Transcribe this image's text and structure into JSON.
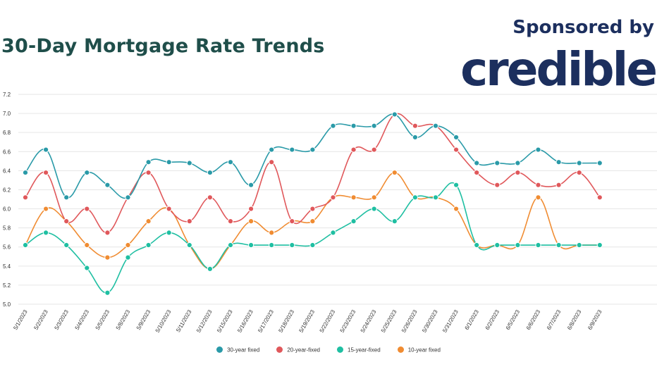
{
  "header": {
    "title": "30-Day Mortgage Rate Trends",
    "sponsor_text": "Sponsored by",
    "brand_name": "credible"
  },
  "colors": {
    "30-year fixed": "#2a9aa8",
    "20-year-fixed": "#e0585b",
    "15-year-fixed": "#1fbfa2",
    "10-year fixed": "#f08c32",
    "title": "#1f4e4a",
    "brand": "#1c2f5e"
  },
  "chart_data": {
    "type": "line",
    "x": [
      "5/1/2023",
      "5/2/2023",
      "5/3/2023",
      "5/4/2023",
      "5/5/2023",
      "5/8/2023",
      "5/9/2023",
      "5/10/2023",
      "5/11/2023",
      "5/12/2023",
      "5/15/2023",
      "5/16/2023",
      "5/17/2023",
      "5/18/2023",
      "5/19/2023",
      "5/22/2023",
      "5/23/2023",
      "5/24/2023",
      "5/25/2023",
      "5/26/2023",
      "5/30/2023",
      "5/31/2023",
      "6/1/2023",
      "6/2/2023",
      "6/5/2023",
      "6/6/2023",
      "6/7/2023",
      "6/8/2023",
      "6/9/2023"
    ],
    "x_tick_labels": [
      "5/1/2023",
      "5/2/2023",
      "5/3/2023",
      "5/4/2023",
      "5/5/2023",
      "5/8/2023",
      "5/9/2023",
      "5/10/2023",
      "5/11/2023",
      "5/12/2023",
      "5/15/2023",
      "5/16/2023",
      "5/17/2023",
      "5/18/2023",
      "5/19/2023",
      "5/22/2023",
      "5/23/2023",
      "5/24/2023",
      "5/25/2023",
      "5/26/2023",
      "5/30/2023",
      "5/31/2023",
      "6/1/2023",
      "6/2/2023",
      "6/5/2023",
      "6/6/2023",
      "6/7/2023",
      "6/8/2023",
      "6/9/2023"
    ],
    "y_ticks": [
      "7.2",
      "7.0",
      "6.8",
      "6.6",
      "6.4",
      "6.2",
      "6.0",
      "5.8",
      "5.6",
      "5.4",
      "5.2",
      "5.0"
    ],
    "ylim": [
      5.0,
      7.2
    ],
    "grid": true,
    "legend_position": "bottom-center",
    "series": [
      {
        "name": "30-year fixed",
        "values": [
          6.38,
          6.62,
          6.12,
          6.38,
          6.25,
          6.12,
          6.49,
          6.49,
          6.48,
          6.38,
          6.49,
          6.25,
          6.62,
          6.62,
          6.62,
          6.87,
          6.87,
          6.87,
          6.99,
          6.75,
          6.87,
          6.75,
          6.48,
          6.48,
          6.48,
          6.62,
          6.49,
          6.48,
          6.48
        ]
      },
      {
        "name": "20-year-fixed",
        "values": [
          6.12,
          6.38,
          5.87,
          6.0,
          5.75,
          6.12,
          6.38,
          6.0,
          5.87,
          6.12,
          5.87,
          6.0,
          6.49,
          5.87,
          6.0,
          6.12,
          6.62,
          6.62,
          6.99,
          6.87,
          6.87,
          6.62,
          6.38,
          6.25,
          6.38,
          6.25,
          6.25,
          6.38,
          6.12
        ]
      },
      {
        "name": "15-year-fixed",
        "values": [
          5.62,
          5.75,
          5.62,
          5.38,
          5.12,
          5.49,
          5.62,
          5.75,
          5.62,
          5.37,
          5.62,
          5.62,
          5.62,
          5.62,
          5.62,
          5.75,
          5.87,
          6.0,
          5.87,
          6.12,
          6.12,
          6.25,
          5.62,
          5.62,
          5.62,
          5.62,
          5.62,
          5.62,
          5.62
        ]
      },
      {
        "name": "10-year fixed",
        "values": [
          5.62,
          6.0,
          5.87,
          5.62,
          5.49,
          5.62,
          5.87,
          6.0,
          5.62,
          5.37,
          5.62,
          5.87,
          5.75,
          5.87,
          5.87,
          6.12,
          6.12,
          6.12,
          6.38,
          6.12,
          6.12,
          6.0,
          5.62,
          5.62,
          5.62,
          6.12,
          5.62,
          5.62,
          5.62
        ]
      }
    ]
  }
}
